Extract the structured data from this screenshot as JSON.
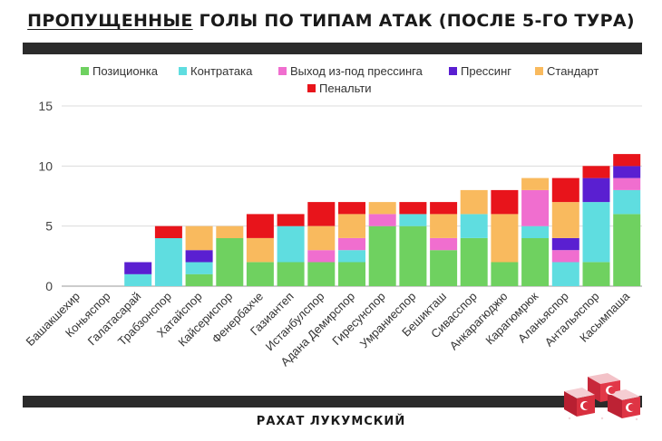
{
  "header": {
    "title_underlined": "ПРОПУЩЕННЫЕ",
    "title_rest": " ГОЛЫ ПО ТИПАМ АТАК (ПОСЛЕ 5-ГО ТУРА)"
  },
  "footer": {
    "brand": "РАХАТ ЛУКУМСКИЙ"
  },
  "logo": {
    "icon": "turkish-delight-flag-cubes-icon"
  },
  "chart_data": {
    "type": "bar",
    "stacked": true,
    "ylim": [
      0,
      15
    ],
    "yticks": [
      "0",
      "5",
      "10",
      "15"
    ],
    "grid": true,
    "legend_position": "top",
    "categories": [
      "Башакшехир",
      "Коньяспор",
      "Галатасарай",
      "Трабзонспор",
      "Хатайспор",
      "Кайсериспор",
      "Фенербахче",
      "Газиантеп",
      "Истанбулспор",
      "Адана Демирспор",
      "Гиресунспор",
      "Умраниеспор",
      "Бешикташ",
      "Сивасспор",
      "Анкарагюджю",
      "Карагюмрюк",
      "Аланьяспор",
      "Антальяспор",
      "Касымпаша"
    ],
    "series": [
      {
        "name": "Позиционка",
        "color": "#6fd160",
        "values": [
          0,
          0,
          0,
          0,
          1,
          4,
          2,
          2,
          2,
          2,
          5,
          5,
          3,
          4,
          2,
          4,
          0,
          2,
          6
        ]
      },
      {
        "name": "Контратака",
        "color": "#5fdde0",
        "values": [
          0,
          0,
          1,
          4,
          1,
          0,
          0,
          3,
          0,
          1,
          0,
          1,
          0,
          2,
          0,
          1,
          2,
          5,
          2
        ]
      },
      {
        "name": "Выход из-под прессинга",
        "color": "#f06ecf",
        "values": [
          0,
          0,
          0,
          0,
          0,
          0,
          0,
          0,
          1,
          1,
          1,
          0,
          1,
          0,
          0,
          3,
          1,
          0,
          1
        ]
      },
      {
        "name": "Прессинг",
        "color": "#5a1fd1",
        "values": [
          0,
          0,
          1,
          0,
          1,
          0,
          0,
          0,
          0,
          0,
          0,
          0,
          0,
          0,
          0,
          0,
          1,
          2,
          1
        ]
      },
      {
        "name": "Стандарт",
        "color": "#f9ba5e",
        "values": [
          0,
          0,
          0,
          0,
          2,
          1,
          2,
          0,
          2,
          2,
          1,
          0,
          2,
          2,
          4,
          1,
          3,
          0,
          0
        ]
      },
      {
        "name": "Пенальти",
        "color": "#e8141b",
        "values": [
          0,
          0,
          0,
          1,
          0,
          0,
          2,
          1,
          2,
          1,
          0,
          1,
          1,
          0,
          2,
          0,
          2,
          1,
          1
        ]
      }
    ]
  }
}
